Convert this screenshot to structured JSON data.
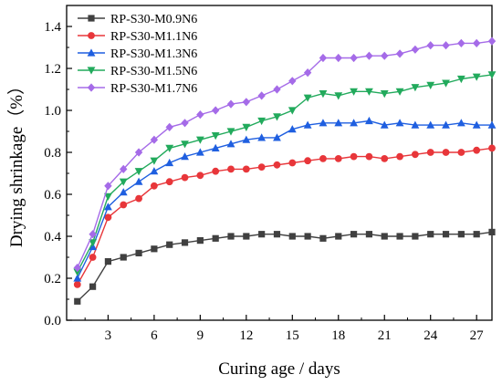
{
  "chart_data": {
    "type": "line",
    "xlabel": "Curing age / days",
    "ylabel": "Drying shrinkage（%）",
    "xlim": [
      0.3,
      28
    ],
    "ylim": [
      0.0,
      1.5
    ],
    "xticks": [
      3,
      6,
      9,
      12,
      15,
      18,
      21,
      24,
      27
    ],
    "yticks": [
      0.0,
      0.2,
      0.4,
      0.6,
      0.8,
      1.0,
      1.2,
      1.4
    ],
    "ytick_labels": [
      "0.0",
      "0.2",
      "0.4",
      "0.6",
      "0.8",
      "1.0",
      "1.2",
      "1.4"
    ],
    "grid": false,
    "legend_position": "top-left",
    "x": [
      1,
      2,
      3,
      4,
      5,
      6,
      7,
      8,
      9,
      10,
      11,
      12,
      13,
      14,
      15,
      16,
      17,
      18,
      19,
      20,
      21,
      22,
      23,
      24,
      25,
      26,
      27,
      28
    ],
    "series": [
      {
        "name": "RP-S30-M0.9N6",
        "color": "#404040",
        "marker": "square",
        "values": [
          0.09,
          0.16,
          0.28,
          0.3,
          0.32,
          0.34,
          0.36,
          0.37,
          0.38,
          0.39,
          0.4,
          0.4,
          0.41,
          0.41,
          0.4,
          0.4,
          0.39,
          0.4,
          0.41,
          0.41,
          0.4,
          0.4,
          0.4,
          0.41,
          0.41,
          0.41,
          0.41,
          0.42
        ]
      },
      {
        "name": "RP-S30-M1.1N6",
        "color": "#e8363a",
        "marker": "circle",
        "values": [
          0.17,
          0.3,
          0.49,
          0.55,
          0.58,
          0.64,
          0.66,
          0.68,
          0.69,
          0.71,
          0.72,
          0.72,
          0.73,
          0.74,
          0.75,
          0.76,
          0.77,
          0.77,
          0.78,
          0.78,
          0.77,
          0.78,
          0.79,
          0.8,
          0.8,
          0.8,
          0.81,
          0.82
        ]
      },
      {
        "name": "RP-S30-M1.3N6",
        "color": "#1f5fe0",
        "marker": "triangle-up",
        "values": [
          0.2,
          0.35,
          0.54,
          0.61,
          0.66,
          0.71,
          0.75,
          0.78,
          0.8,
          0.82,
          0.84,
          0.86,
          0.87,
          0.87,
          0.91,
          0.93,
          0.94,
          0.94,
          0.94,
          0.95,
          0.93,
          0.94,
          0.93,
          0.93,
          0.93,
          0.94,
          0.93,
          0.93
        ]
      },
      {
        "name": "RP-S30-M1.5N6",
        "color": "#22aa5c",
        "marker": "triangle-down",
        "values": [
          0.23,
          0.37,
          0.59,
          0.66,
          0.71,
          0.76,
          0.82,
          0.84,
          0.86,
          0.88,
          0.9,
          0.92,
          0.95,
          0.97,
          1.0,
          1.06,
          1.08,
          1.07,
          1.09,
          1.09,
          1.08,
          1.09,
          1.11,
          1.12,
          1.13,
          1.15,
          1.16,
          1.17
        ]
      },
      {
        "name": "RP-S30-M1.7N6",
        "color": "#a56be8",
        "marker": "diamond",
        "values": [
          0.25,
          0.41,
          0.64,
          0.72,
          0.8,
          0.86,
          0.92,
          0.94,
          0.98,
          1.0,
          1.03,
          1.04,
          1.07,
          1.1,
          1.14,
          1.18,
          1.25,
          1.25,
          1.25,
          1.26,
          1.26,
          1.27,
          1.29,
          1.31,
          1.31,
          1.32,
          1.32,
          1.33
        ]
      }
    ]
  }
}
